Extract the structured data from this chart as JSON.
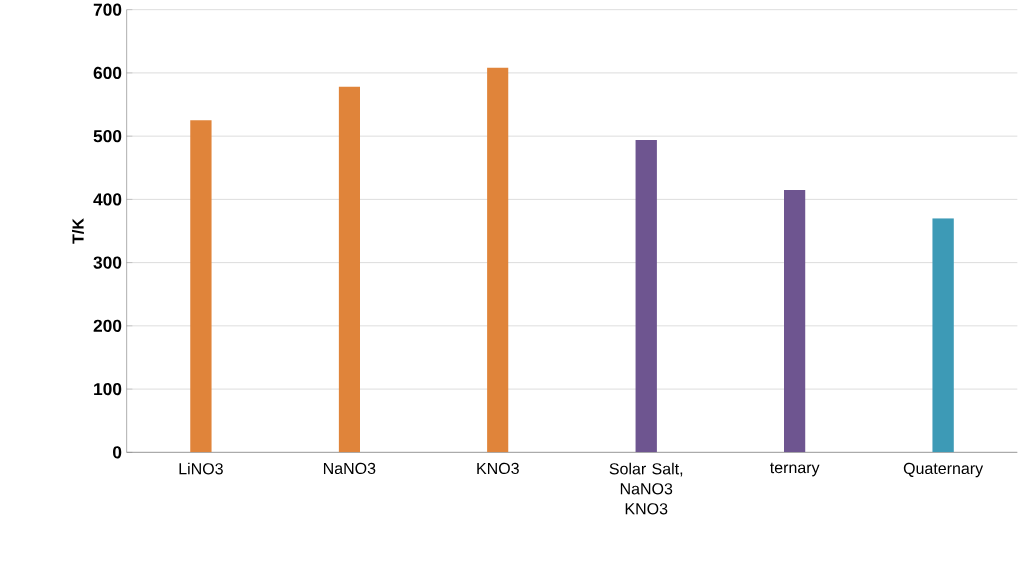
{
  "chart_data": {
    "type": "bar",
    "ylabel": "T/K",
    "categories": [
      "LiNO3",
      "NaNO3",
      "KNO3",
      "Solar Salt, NaNO3 KNO3",
      "ternary",
      "Quaternary"
    ],
    "values": [
      525,
      578,
      608,
      494,
      415,
      370
    ],
    "colors": [
      "#e0843a",
      "#e0843a",
      "#e0843a",
      "#6e5590",
      "#6e5590",
      "#3d9ab6"
    ],
    "ylim": [
      0,
      700
    ],
    "yticks": [
      0,
      100,
      200,
      300,
      400,
      500,
      600,
      700
    ],
    "grid": "y"
  }
}
